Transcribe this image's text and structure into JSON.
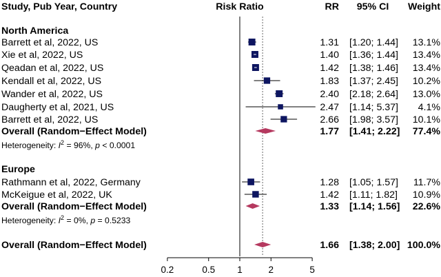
{
  "chart_data": {
    "type": "forest",
    "headers": {
      "study": "Study, Pub Year, Country",
      "effect": "Risk Ratio",
      "rr": "RR",
      "ci": "95% CI",
      "weight": "Weight"
    },
    "axis": {
      "scale": "log",
      "ticks": [
        0.2,
        0.5,
        1,
        2,
        5
      ],
      "tick_labels": [
        "0.2",
        "0.5",
        "1",
        "2",
        "5"
      ],
      "null_line": 1,
      "reference_line": 1.66
    },
    "groups": [
      {
        "name": "North America",
        "studies": [
          {
            "label": "Barrett et al, 2022, US",
            "rr": 1.31,
            "lo": 1.2,
            "hi": 1.44,
            "rr_text": "1.31",
            "ci_text": "[1.20; 1.44]",
            "weight": 13.1,
            "weight_text": "13.1%"
          },
          {
            "label": "Xie et al, 2022, US",
            "rr": 1.4,
            "lo": 1.36,
            "hi": 1.44,
            "rr_text": "1.40",
            "ci_text": "[1.36; 1.44]",
            "weight": 13.4,
            "weight_text": "13.4%"
          },
          {
            "label": "Qeadan et al, 2022, US",
            "rr": 1.42,
            "lo": 1.38,
            "hi": 1.46,
            "rr_text": "1.42",
            "ci_text": "[1.38; 1.46]",
            "weight": 13.4,
            "weight_text": "13.4%"
          },
          {
            "label": "Kendall et al, 2022, US",
            "rr": 1.83,
            "lo": 1.37,
            "hi": 2.45,
            "rr_text": "1.83",
            "ci_text": "[1.37; 2.45]",
            "weight": 10.2,
            "weight_text": "10.2%"
          },
          {
            "label": "Wander et al, 2022, US",
            "rr": 2.4,
            "lo": 2.18,
            "hi": 2.64,
            "rr_text": "2.40",
            "ci_text": "[2.18; 2.64]",
            "weight": 13.0,
            "weight_text": "13.0%"
          },
          {
            "label": "Daugherty et al, 2021, US",
            "rr": 2.47,
            "lo": 1.14,
            "hi": 5.37,
            "rr_text": "2.47",
            "ci_text": "[1.14; 5.37]",
            "weight": 4.1,
            "weight_text": "4.1%"
          },
          {
            "label": "Barrett et al, 2022, US",
            "rr": 2.66,
            "lo": 1.98,
            "hi": 3.57,
            "rr_text": "2.66",
            "ci_text": "[1.98; 3.57]",
            "weight": 10.1,
            "weight_text": "10.1%"
          }
        ],
        "overall": {
          "label": "Overall (Random−Effect Model)",
          "rr": 1.77,
          "lo": 1.41,
          "hi": 2.22,
          "rr_text": "1.77",
          "ci_text": "[1.41; 2.22]",
          "weight_text": "77.4%"
        },
        "heterogeneity": {
          "prefix": "Heterogeneity: ",
          "i2": "96%",
          "p": "< 0.0001"
        }
      },
      {
        "name": "Europe",
        "studies": [
          {
            "label": "Rathmann et al, 2022, Germany",
            "rr": 1.28,
            "lo": 1.05,
            "hi": 1.57,
            "rr_text": "1.28",
            "ci_text": "[1.05; 1.57]",
            "weight": 11.7,
            "weight_text": "11.7%"
          },
          {
            "label": "McKeigue et al, 2022, UK",
            "rr": 1.42,
            "lo": 1.11,
            "hi": 1.82,
            "rr_text": "1.42",
            "ci_text": "[1.11; 1.82]",
            "weight": 10.9,
            "weight_text": "10.9%"
          }
        ],
        "overall": {
          "label": "Overall (Random−Effect Model)",
          "rr": 1.33,
          "lo": 1.14,
          "hi": 1.56,
          "rr_text": "1.33",
          "ci_text": "[1.14; 1.56]",
          "weight_text": "22.6%"
        },
        "heterogeneity": {
          "prefix": "Heterogeneity: ",
          "i2": "0%",
          "p": "= 0.5233"
        }
      }
    ],
    "overall": {
      "label": "Overall (Random−Effect Model)",
      "rr": 1.66,
      "lo": 1.38,
      "hi": 2.0,
      "rr_text": "1.66",
      "ci_text": "[1.38; 2.00]",
      "weight_text": "100.0%"
    },
    "colors": {
      "square": "#0d1560",
      "diamond": "#b5395f",
      "text": "#000000"
    }
  }
}
